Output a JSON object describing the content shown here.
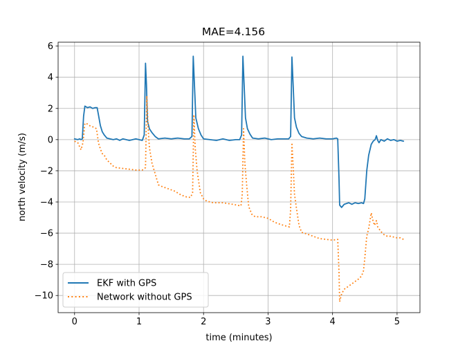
{
  "chart_data": {
    "type": "line",
    "title": "MAE=4.156",
    "xlabel": "time (minutes)",
    "ylabel": "north velocity (m/s)",
    "xlim": [
      -0.255,
      5.355
    ],
    "ylim": [
      -11.1,
      6.25
    ],
    "xticks": [
      0,
      1,
      2,
      3,
      4,
      5
    ],
    "xtick_labels": [
      "0",
      "1",
      "2",
      "3",
      "4",
      "5"
    ],
    "yticks": [
      6,
      4,
      2,
      0,
      -2,
      -4,
      -6,
      -8,
      -10
    ],
    "ytick_labels": [
      "6",
      "4",
      "2",
      "0",
      "−2",
      "−4",
      "−6",
      "−8",
      "−10"
    ],
    "grid": true,
    "legend_position": "lower-left",
    "series": [
      {
        "name": "EKF with GPS",
        "color": "#1f77b4",
        "style": "solid",
        "points": [
          [
            0.0,
            0.05
          ],
          [
            0.05,
            0.0
          ],
          [
            0.08,
            0.05
          ],
          [
            0.1,
            0.0
          ],
          [
            0.12,
            0.05
          ],
          [
            0.14,
            1.5
          ],
          [
            0.16,
            2.15
          ],
          [
            0.2,
            2.05
          ],
          [
            0.24,
            2.1
          ],
          [
            0.28,
            2.0
          ],
          [
            0.32,
            2.05
          ],
          [
            0.35,
            2.05
          ],
          [
            0.37,
            1.6
          ],
          [
            0.4,
            0.9
          ],
          [
            0.43,
            0.5
          ],
          [
            0.46,
            0.3
          ],
          [
            0.5,
            0.1
          ],
          [
            0.55,
            0.05
          ],
          [
            0.6,
            0.0
          ],
          [
            0.65,
            0.05
          ],
          [
            0.7,
            -0.05
          ],
          [
            0.75,
            0.05
          ],
          [
            0.8,
            0.0
          ],
          [
            0.85,
            -0.05
          ],
          [
            0.9,
            0.0
          ],
          [
            0.95,
            0.05
          ],
          [
            1.0,
            0.0
          ],
          [
            1.05,
            -0.05
          ],
          [
            1.08,
            0.3
          ],
          [
            1.1,
            4.9
          ],
          [
            1.115,
            3.5
          ],
          [
            1.13,
            1.2
          ],
          [
            1.16,
            0.7
          ],
          [
            1.2,
            0.45
          ],
          [
            1.25,
            0.2
          ],
          [
            1.3,
            0.05
          ],
          [
            1.4,
            0.1
          ],
          [
            1.5,
            0.05
          ],
          [
            1.6,
            0.1
          ],
          [
            1.7,
            0.05
          ],
          [
            1.78,
            0.05
          ],
          [
            1.82,
            0.2
          ],
          [
            1.84,
            5.35
          ],
          [
            1.86,
            3.4
          ],
          [
            1.88,
            1.4
          ],
          [
            1.92,
            0.7
          ],
          [
            1.96,
            0.3
          ],
          [
            2.0,
            0.05
          ],
          [
            2.1,
            0.0
          ],
          [
            2.2,
            -0.05
          ],
          [
            2.3,
            0.05
          ],
          [
            2.4,
            -0.05
          ],
          [
            2.5,
            0.0
          ],
          [
            2.56,
            0.0
          ],
          [
            2.59,
            0.3
          ],
          [
            2.61,
            5.35
          ],
          [
            2.63,
            3.4
          ],
          [
            2.65,
            1.4
          ],
          [
            2.68,
            0.7
          ],
          [
            2.72,
            0.35
          ],
          [
            2.76,
            0.1
          ],
          [
            2.85,
            0.05
          ],
          [
            2.95,
            0.1
          ],
          [
            3.05,
            0.0
          ],
          [
            3.15,
            0.05
          ],
          [
            3.25,
            0.05
          ],
          [
            3.32,
            0.05
          ],
          [
            3.35,
            0.2
          ],
          [
            3.37,
            5.3
          ],
          [
            3.39,
            3.4
          ],
          [
            3.41,
            1.4
          ],
          [
            3.44,
            0.8
          ],
          [
            3.48,
            0.4
          ],
          [
            3.52,
            0.2
          ],
          [
            3.6,
            0.1
          ],
          [
            3.7,
            0.05
          ],
          [
            3.8,
            0.1
          ],
          [
            3.9,
            0.05
          ],
          [
            4.0,
            0.05
          ],
          [
            4.06,
            0.1
          ],
          [
            4.08,
            0.05
          ],
          [
            4.1,
            -2.5
          ],
          [
            4.11,
            -4.2
          ],
          [
            4.14,
            -4.35
          ],
          [
            4.18,
            -4.15
          ],
          [
            4.25,
            -4.05
          ],
          [
            4.3,
            -4.15
          ],
          [
            4.35,
            -4.05
          ],
          [
            4.4,
            -4.1
          ],
          [
            4.45,
            -4.05
          ],
          [
            4.48,
            -4.1
          ],
          [
            4.5,
            -3.8
          ],
          [
            4.53,
            -2.0
          ],
          [
            4.56,
            -1.0
          ],
          [
            4.6,
            -0.3
          ],
          [
            4.63,
            -0.1
          ],
          [
            4.66,
            0.0
          ],
          [
            4.68,
            0.25
          ],
          [
            4.7,
            -0.05
          ],
          [
            4.72,
            -0.2
          ],
          [
            4.75,
            0.0
          ],
          [
            4.8,
            -0.1
          ],
          [
            4.85,
            0.05
          ],
          [
            4.9,
            -0.05
          ],
          [
            4.95,
            0.0
          ],
          [
            5.0,
            -0.1
          ],
          [
            5.05,
            -0.05
          ],
          [
            5.1,
            -0.1
          ]
        ]
      },
      {
        "name": "Network without GPS",
        "color": "#ff7f0e",
        "style": "dotted",
        "points": [
          [
            0.0,
            -0.1
          ],
          [
            0.05,
            -0.2
          ],
          [
            0.1,
            -0.65
          ],
          [
            0.13,
            -0.2
          ],
          [
            0.16,
            1.05
          ],
          [
            0.2,
            1.0
          ],
          [
            0.25,
            0.85
          ],
          [
            0.3,
            0.8
          ],
          [
            0.34,
            0.7
          ],
          [
            0.37,
            -0.2
          ],
          [
            0.4,
            -0.6
          ],
          [
            0.43,
            -0.9
          ],
          [
            0.46,
            -1.0
          ],
          [
            0.5,
            -1.3
          ],
          [
            0.55,
            -1.5
          ],
          [
            0.6,
            -1.7
          ],
          [
            0.65,
            -1.8
          ],
          [
            0.75,
            -1.85
          ],
          [
            0.85,
            -1.9
          ],
          [
            0.95,
            -1.95
          ],
          [
            1.05,
            -1.95
          ],
          [
            1.1,
            -1.8
          ],
          [
            1.12,
            2.8
          ],
          [
            1.14,
            0.8
          ],
          [
            1.16,
            -0.5
          ],
          [
            1.2,
            -1.5
          ],
          [
            1.25,
            -2.2
          ],
          [
            1.3,
            -2.9
          ],
          [
            1.35,
            -3.0
          ],
          [
            1.45,
            -3.15
          ],
          [
            1.55,
            -3.3
          ],
          [
            1.65,
            -3.55
          ],
          [
            1.75,
            -3.7
          ],
          [
            1.8,
            -3.7
          ],
          [
            1.83,
            -3.4
          ],
          [
            1.85,
            1.6
          ],
          [
            1.87,
            -0.5
          ],
          [
            1.9,
            -2.0
          ],
          [
            1.95,
            -3.4
          ],
          [
            2.0,
            -3.8
          ],
          [
            2.05,
            -3.95
          ],
          [
            2.15,
            -4.05
          ],
          [
            2.3,
            -4.05
          ],
          [
            2.45,
            -4.15
          ],
          [
            2.58,
            -4.25
          ],
          [
            2.6,
            -3.5
          ],
          [
            2.62,
            0.7
          ],
          [
            2.64,
            -1.5
          ],
          [
            2.67,
            -3.0
          ],
          [
            2.7,
            -4.3
          ],
          [
            2.75,
            -4.8
          ],
          [
            2.8,
            -4.95
          ],
          [
            2.9,
            -4.95
          ],
          [
            3.0,
            -5.05
          ],
          [
            3.1,
            -5.3
          ],
          [
            3.2,
            -5.45
          ],
          [
            3.33,
            -5.6
          ],
          [
            3.35,
            -4.5
          ],
          [
            3.37,
            -0.2
          ],
          [
            3.39,
            -1.8
          ],
          [
            3.41,
            -3.5
          ],
          [
            3.44,
            -4.4
          ],
          [
            3.48,
            -5.5
          ],
          [
            3.52,
            -5.95
          ],
          [
            3.6,
            -6.05
          ],
          [
            3.7,
            -6.2
          ],
          [
            3.8,
            -6.35
          ],
          [
            3.9,
            -6.4
          ],
          [
            4.0,
            -6.45
          ],
          [
            4.08,
            -6.4
          ],
          [
            4.1,
            -8.5
          ],
          [
            4.11,
            -10.4
          ],
          [
            4.14,
            -9.9
          ],
          [
            4.18,
            -9.6
          ],
          [
            4.25,
            -9.4
          ],
          [
            4.3,
            -9.25
          ],
          [
            4.35,
            -9.1
          ],
          [
            4.4,
            -8.95
          ],
          [
            4.45,
            -8.75
          ],
          [
            4.48,
            -8.4
          ],
          [
            4.5,
            -7.6
          ],
          [
            4.53,
            -6.2
          ],
          [
            4.56,
            -5.7
          ],
          [
            4.58,
            -5.2
          ],
          [
            4.6,
            -4.7
          ],
          [
            4.62,
            -5.1
          ],
          [
            4.65,
            -5.5
          ],
          [
            4.68,
            -5.2
          ],
          [
            4.7,
            -5.6
          ],
          [
            4.75,
            -5.9
          ],
          [
            4.8,
            -6.1
          ],
          [
            4.85,
            -6.2
          ],
          [
            4.9,
            -6.2
          ],
          [
            4.95,
            -6.25
          ],
          [
            5.0,
            -6.3
          ],
          [
            5.05,
            -6.3
          ],
          [
            5.1,
            -6.4
          ]
        ]
      }
    ]
  }
}
